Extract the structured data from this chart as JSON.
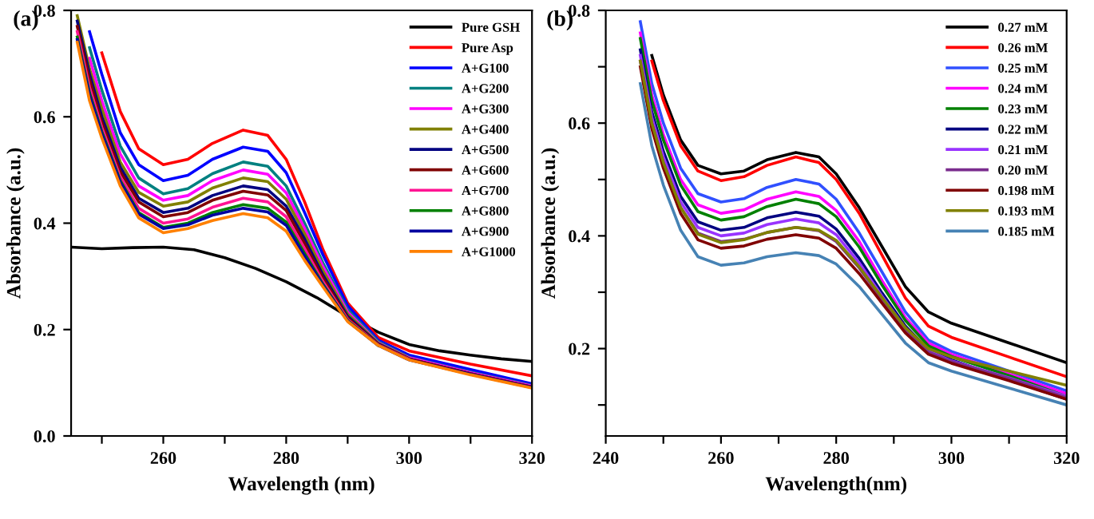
{
  "chart_data": [
    {
      "type": "line",
      "xlabel": "Wavelength (nm)",
      "ylabel": "Absorbance (a.u.)",
      "annotations": [
        "(a)"
      ],
      "legend": "top right",
      "xlim": [
        245,
        320
      ],
      "ylim": [
        0,
        0.8
      ],
      "xticks": [
        {
          "value": 250,
          "label": null
        },
        260,
        {
          "value": 270,
          "label": null
        },
        280,
        {
          "value": 290,
          "label": null
        },
        300,
        {
          "value": 310,
          "label": null
        },
        320
      ],
      "yticks": [
        {
          "value": 0,
          "label": "0.0"
        },
        0.2,
        0.4,
        0.6,
        0.8
      ],
      "x": [
        246,
        248,
        250,
        253,
        256,
        260,
        264,
        268,
        273,
        277,
        280,
        283,
        286,
        290,
        295,
        300,
        310,
        320
      ],
      "series": [
        {
          "name": "Pure GSH",
          "color": "#000000",
          "x": [
            245,
            250,
            255,
            260,
            265,
            270,
            275,
            280,
            285,
            290,
            295,
            300,
            305,
            310,
            315,
            320
          ],
          "values": [
            0.355,
            0.352,
            0.354,
            0.355,
            0.35,
            0.335,
            0.315,
            0.29,
            0.26,
            0.225,
            0.195,
            0.172,
            0.16,
            0.152,
            0.145,
            0.14
          ]
        },
        {
          "name": "Pure Asp",
          "color": "#ff0000",
          "values": [
            null,
            null,
            0.72,
            0.61,
            0.54,
            0.51,
            0.52,
            0.55,
            0.575,
            0.565,
            0.52,
            0.44,
            0.35,
            0.25,
            0.185,
            0.16,
            0.135,
            0.113
          ]
        },
        {
          "name": "A+G100",
          "color": "#0000ff",
          "values": [
            null,
            0.76,
            0.68,
            0.57,
            0.51,
            0.48,
            0.49,
            0.52,
            0.543,
            0.535,
            0.495,
            0.42,
            0.34,
            0.245,
            0.18,
            0.152,
            0.125,
            0.098
          ]
        },
        {
          "name": "A+G200",
          "color": "#008080",
          "values": [
            null,
            0.73,
            0.65,
            0.545,
            0.485,
            0.455,
            0.465,
            0.493,
            0.515,
            0.507,
            0.47,
            0.4,
            0.325,
            0.237,
            0.177,
            0.148,
            0.12,
            0.095
          ]
        },
        {
          "name": "A+G300",
          "color": "#ff00ff",
          "values": [
            null,
            0.71,
            0.63,
            0.53,
            0.47,
            0.443,
            0.452,
            0.48,
            0.5,
            0.492,
            0.457,
            0.39,
            0.318,
            0.233,
            0.175,
            0.147,
            0.119,
            0.094
          ]
        },
        {
          "name": "A+G400",
          "color": "#808000",
          "values": [
            0.79,
            0.69,
            0.615,
            0.515,
            0.458,
            0.432,
            0.44,
            0.466,
            0.485,
            0.478,
            0.445,
            0.38,
            0.31,
            0.229,
            0.174,
            0.146,
            null,
            null
          ]
        },
        {
          "name": "A+G500",
          "color": "#000080",
          "values": [
            0.78,
            0.68,
            0.6,
            0.505,
            0.447,
            0.42,
            0.428,
            0.452,
            0.47,
            0.463,
            0.432,
            0.37,
            0.302,
            0.225,
            0.173,
            0.145,
            0.117,
            0.092
          ]
        },
        {
          "name": "A+G600",
          "color": "#800000",
          "values": [
            0.77,
            0.67,
            0.59,
            0.497,
            0.44,
            0.412,
            0.42,
            0.443,
            0.46,
            0.453,
            0.424,
            0.362,
            0.297,
            0.222,
            0.172,
            0.145,
            0.117,
            0.092
          ]
        },
        {
          "name": "A+G700",
          "color": "#ff1493",
          "values": [
            0.76,
            0.655,
            0.58,
            0.487,
            0.428,
            0.4,
            0.408,
            0.43,
            0.447,
            0.44,
            0.412,
            0.352,
            0.29,
            0.219,
            0.171,
            0.144,
            null,
            null
          ]
        },
        {
          "name": "A+G800",
          "color": "#008000",
          "values": [
            0.75,
            0.645,
            0.572,
            0.48,
            0.42,
            0.392,
            0.4,
            0.42,
            0.435,
            0.428,
            0.402,
            0.343,
            0.285,
            0.217,
            0.17,
            null,
            null,
            null
          ]
        },
        {
          "name": "A+G900",
          "color": "#0000a0",
          "values": [
            0.745,
            0.64,
            0.568,
            0.477,
            0.417,
            0.39,
            0.397,
            0.415,
            0.428,
            0.421,
            0.396,
            0.338,
            0.283,
            0.216,
            0.17,
            0.143,
            0.116,
            0.091
          ]
        },
        {
          "name": "A+G1000",
          "color": "#ff8000",
          "values": [
            0.74,
            0.63,
            0.56,
            0.47,
            0.41,
            0.382,
            0.39,
            0.405,
            0.418,
            0.41,
            0.385,
            0.33,
            0.28,
            0.215,
            0.17,
            0.143,
            0.115,
            0.09
          ]
        }
      ]
    },
    {
      "type": "line",
      "xlabel": "Wavelength(nm)",
      "ylabel": "Absorbance (a.u.)",
      "annotations": [
        "(b)"
      ],
      "legend": "top right",
      "xlim": [
        240,
        320
      ],
      "ylim": [
        0.045,
        0.8
      ],
      "xticks": [
        240,
        {
          "value": 250,
          "label": null
        },
        260,
        {
          "value": 270,
          "label": null
        },
        280,
        {
          "value": 290,
          "label": null
        },
        300,
        {
          "value": 310,
          "label": null
        },
        320
      ],
      "yticks": [
        {
          "value": 0.1,
          "label": null
        },
        0.2,
        {
          "value": 0.3,
          "label": null
        },
        0.4,
        {
          "value": 0.5,
          "label": null
        },
        0.6,
        {
          "value": 0.7,
          "label": null
        },
        0.8
      ],
      "x": [
        246,
        248,
        250,
        253,
        256,
        260,
        264,
        268,
        273,
        277,
        280,
        284,
        288,
        292,
        296,
        300,
        310,
        320
      ],
      "series": [
        {
          "name": "0.27 mM",
          "color": "#000000",
          "values": [
            null,
            0.72,
            0.65,
            0.57,
            0.525,
            0.51,
            0.515,
            0.535,
            0.548,
            0.54,
            0.51,
            0.45,
            0.38,
            0.31,
            0.265,
            0.245,
            0.21,
            0.175
          ]
        },
        {
          "name": "0.26 mM",
          "color": "#ff0000",
          "values": [
            null,
            0.71,
            0.64,
            0.56,
            0.515,
            0.498,
            0.505,
            0.525,
            0.54,
            0.53,
            0.5,
            0.44,
            0.365,
            0.29,
            0.24,
            0.22,
            0.185,
            0.15
          ]
        },
        {
          "name": "0.25 mM",
          "color": "#3050ff",
          "values": [
            0.78,
            0.67,
            0.6,
            0.52,
            0.475,
            0.46,
            0.466,
            0.486,
            0.5,
            0.492,
            0.465,
            0.405,
            0.335,
            0.265,
            0.215,
            0.195,
            0.16,
            0.125
          ]
        },
        {
          "name": "0.24 mM",
          "color": "#ff00ff",
          "values": [
            0.76,
            0.65,
            0.58,
            0.5,
            0.455,
            0.44,
            0.446,
            0.465,
            0.478,
            0.47,
            0.445,
            0.39,
            0.32,
            0.255,
            0.21,
            0.19,
            0.155,
            0.12
          ]
        },
        {
          "name": "0.23 mM",
          "color": "#008000",
          "values": [
            0.75,
            0.64,
            0.57,
            0.49,
            0.443,
            0.428,
            0.434,
            0.452,
            0.465,
            0.457,
            0.434,
            0.38,
            0.312,
            0.25,
            0.205,
            0.186,
            0.152,
            0.115
          ]
        },
        {
          "name": "0.22 mM",
          "color": "#000080",
          "values": [
            0.73,
            0.62,
            0.55,
            0.47,
            0.425,
            0.41,
            0.415,
            0.432,
            0.442,
            0.435,
            0.412,
            0.36,
            0.298,
            0.24,
            0.198,
            0.18,
            0.145,
            0.11
          ]
        },
        {
          "name": "0.21 mM",
          "color": "#9933ff",
          "values": [
            0.72,
            0.61,
            0.54,
            0.46,
            0.415,
            0.4,
            0.405,
            0.42,
            0.43,
            0.423,
            0.402,
            0.352,
            0.292,
            0.236,
            0.196,
            0.178,
            0.148,
            0.115
          ]
        },
        {
          "name": "0.20 mM",
          "color": "#7b2d8e",
          "values": [
            0.71,
            0.6,
            0.53,
            0.45,
            0.405,
            0.39,
            0.394,
            0.406,
            0.415,
            0.409,
            0.39,
            0.343,
            0.287,
            0.233,
            0.194,
            0.177,
            0.147,
            0.113
          ]
        },
        {
          "name": "0.198 mM",
          "color": "#800000",
          "values": [
            0.7,
            0.59,
            0.52,
            0.44,
            0.393,
            0.378,
            0.382,
            0.394,
            0.402,
            0.396,
            0.378,
            0.333,
            0.28,
            0.228,
            0.19,
            0.174,
            0.143,
            0.11
          ]
        },
        {
          "name": "0.193 mM",
          "color": "#808000",
          "values": [
            0.71,
            0.6,
            0.53,
            0.45,
            0.403,
            0.388,
            0.393,
            0.406,
            0.415,
            0.41,
            0.392,
            0.345,
            0.29,
            0.237,
            0.2,
            0.185,
            0.16,
            0.135
          ]
        },
        {
          "name": "0.185 mM",
          "color": "#4682b4",
          "values": [
            0.67,
            0.56,
            0.49,
            0.41,
            0.363,
            0.348,
            0.352,
            0.363,
            0.37,
            0.365,
            0.35,
            0.31,
            0.26,
            0.21,
            0.175,
            0.16,
            0.13,
            0.1
          ]
        }
      ]
    }
  ]
}
